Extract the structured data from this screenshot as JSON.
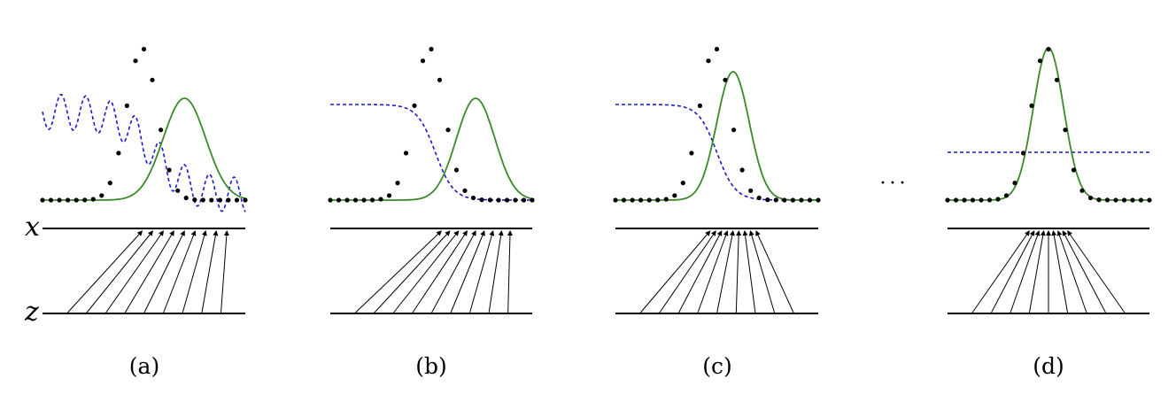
{
  "figure": {
    "axis_labels": {
      "x": "x",
      "z": "z"
    },
    "ellipsis": "···",
    "colors": {
      "data_dots": "#000000",
      "generator_curve": "#3a8a2a",
      "discriminator_curve": "#1a1acc",
      "lines": "#000000"
    },
    "panels": [
      {
        "caption": "(a)",
        "generator_mean": 0.7,
        "generator_sigma": 0.105,
        "discriminator": "wavy",
        "mapping_spread": 0.55,
        "mapping_shift": 0.7
      },
      {
        "caption": "(b)",
        "generator_mean": 0.72,
        "generator_sigma": 0.095,
        "discriminator": "sigmoid",
        "mapping_spread": 0.45,
        "mapping_shift": 0.72
      },
      {
        "caption": "(c)",
        "generator_mean": 0.58,
        "generator_sigma": 0.08,
        "discriminator": "sigmoid",
        "mapping_spread": 0.3,
        "mapping_shift": 0.58
      },
      {
        "caption": "(d)",
        "generator_mean": 0.5,
        "generator_sigma": 0.075,
        "discriminator": "flat",
        "mapping_spread": 0.25,
        "mapping_shift": 0.5
      }
    ]
  }
}
